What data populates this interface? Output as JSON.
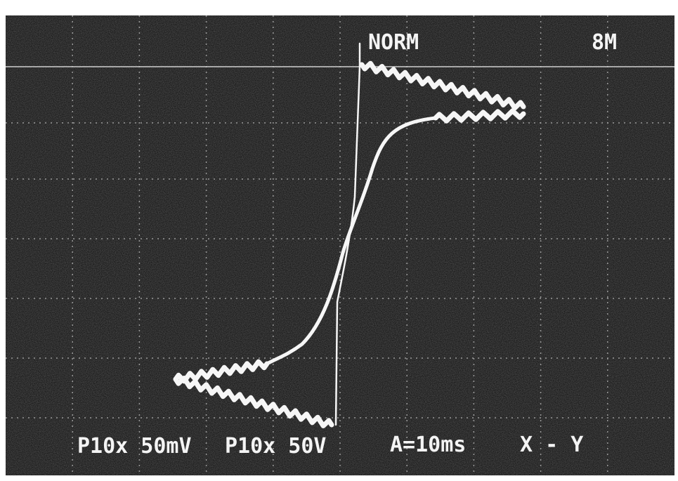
{
  "header": {
    "mode": "NORM",
    "memory": "8M"
  },
  "footer": {
    "ch1": "P10x 50mV",
    "ch2": "P10x 50V",
    "timebase": "A=10ms",
    "display": "X - Y"
  }
}
